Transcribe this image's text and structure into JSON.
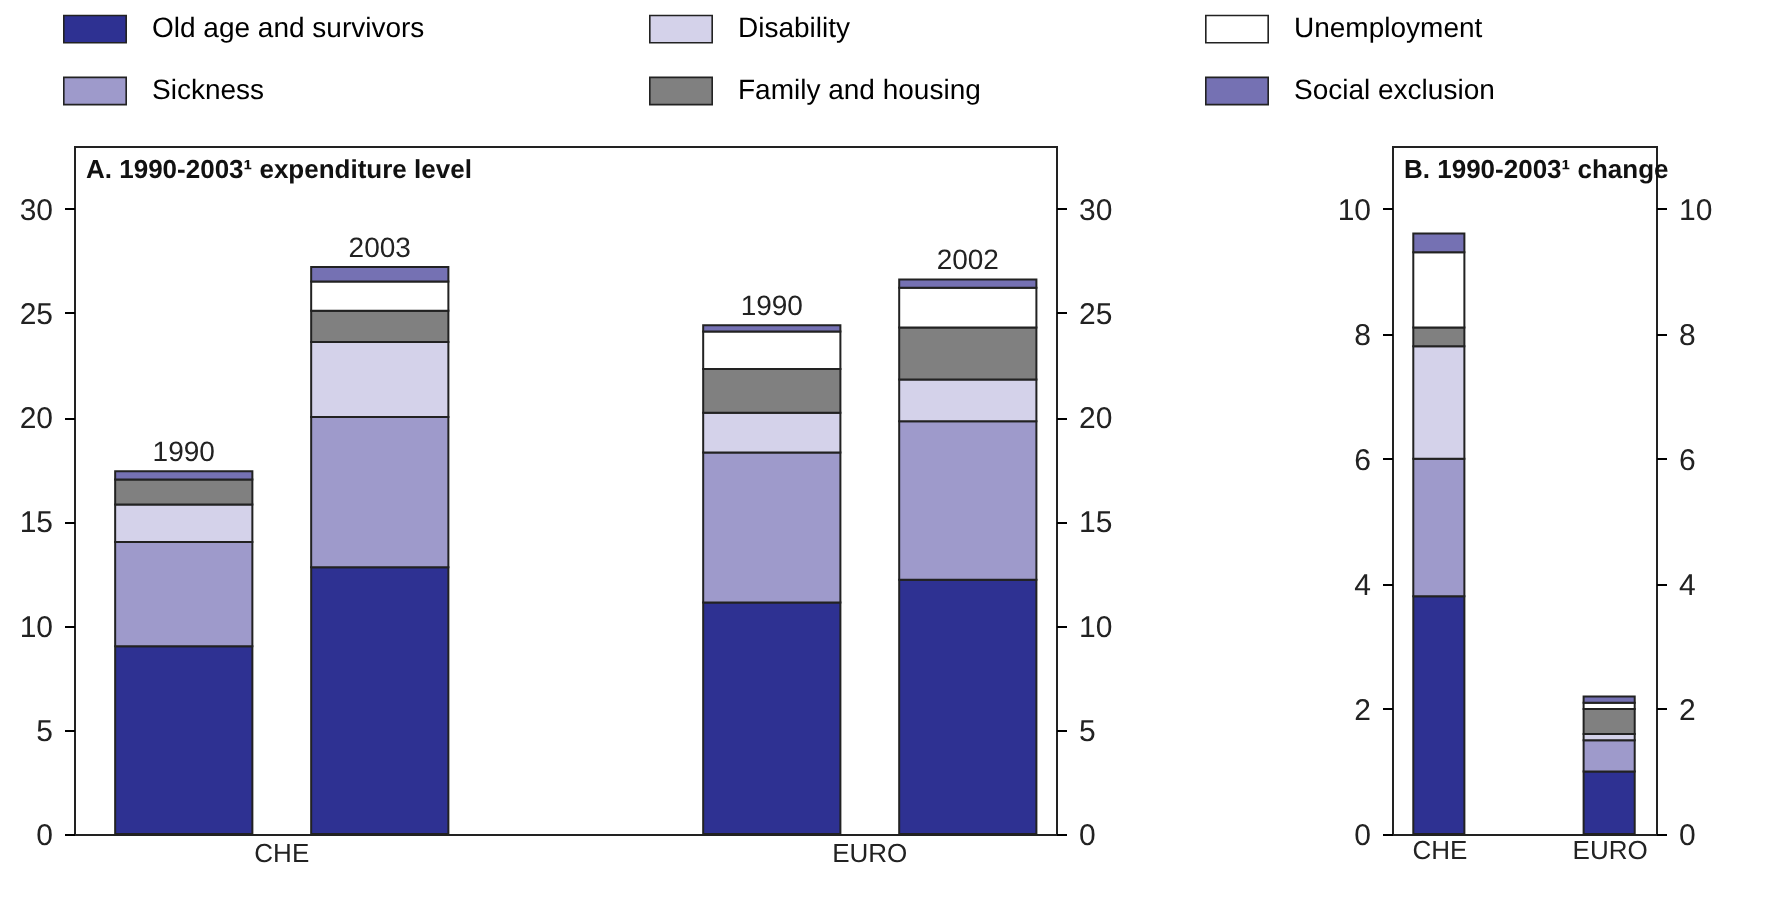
{
  "chart_data": [
    {
      "type": "bar",
      "stacked": true,
      "title": "A. 1990-2003¹ expenditure level",
      "categories": [
        "1990",
        "2003",
        "1990",
        "2002"
      ],
      "annotations": [
        "CHE",
        "EURO"
      ],
      "legend": "top",
      "series": [
        {
          "name": "Old age and survivors",
          "color": "#2e3192",
          "values": [
            9.0,
            12.8,
            11.1,
            12.2
          ]
        },
        {
          "name": "Sickness",
          "color": "#9e9acb",
          "values": [
            5.0,
            7.2,
            7.2,
            7.6
          ]
        },
        {
          "name": "Disability",
          "color": "#d4d2ea",
          "values": [
            1.8,
            3.6,
            1.9,
            2.0
          ]
        },
        {
          "name": "Family and housing",
          "color": "#808080",
          "values": [
            1.2,
            1.5,
            2.1,
            2.5
          ]
        },
        {
          "name": "Unemployment",
          "color": "#ffffff",
          "values": [
            null,
            1.4,
            1.8,
            1.9
          ]
        },
        {
          "name": "Social exclusion",
          "color": "#7571b3",
          "values": [
            0.4,
            0.7,
            0.3,
            0.4
          ]
        }
      ],
      "ylim": [
        0,
        33
      ],
      "yticks": [
        0,
        5,
        10,
        15,
        20,
        25,
        30
      ],
      "y2lim": [
        0,
        33
      ],
      "y2ticks": [
        0,
        5,
        10,
        15,
        20,
        25,
        30
      ]
    },
    {
      "type": "bar",
      "stacked": true,
      "title": "B. 1990-2003¹ change",
      "categories": [
        "CHE",
        "EURO"
      ],
      "series": [
        {
          "name": "Old age and survivors",
          "color": "#2e3192",
          "values": [
            3.8,
            1.0
          ]
        },
        {
          "name": "Sickness",
          "color": "#9e9acb",
          "values": [
            2.2,
            0.5
          ]
        },
        {
          "name": "Disability",
          "color": "#d4d2ea",
          "values": [
            1.8,
            0.1
          ]
        },
        {
          "name": "Family and housing",
          "color": "#808080",
          "values": [
            0.3,
            0.4
          ]
        },
        {
          "name": "Unemployment",
          "color": "#ffffff",
          "values": [
            1.2,
            0.1
          ]
        },
        {
          "name": "Social exclusion",
          "color": "#7571b3",
          "values": [
            0.3,
            0.1
          ]
        }
      ],
      "ylim": [
        0,
        11
      ],
      "yticks": [
        0,
        2,
        4,
        6,
        8,
        10
      ],
      "y2lim": [
        0,
        11
      ],
      "y2ticks": [
        0,
        2,
        4,
        6,
        8,
        10
      ]
    }
  ]
}
